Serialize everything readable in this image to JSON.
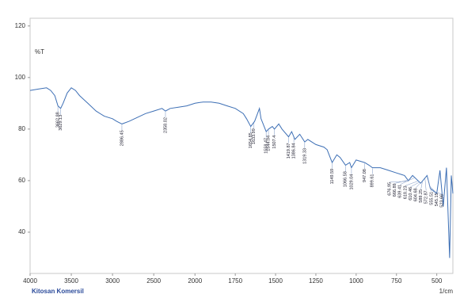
{
  "chart_data": {
    "type": "line",
    "title": "Kitosan Komersil",
    "y_label": "%T",
    "x_label": "1/cm",
    "xlim": [
      4000,
      400
    ],
    "x_scale_change": 2000,
    "ylim": [
      24,
      123
    ],
    "xticks": [
      4000,
      3500,
      3000,
      2500,
      2000,
      1750,
      1500,
      1250,
      1000,
      750,
      500
    ],
    "yticks": [
      40,
      60,
      80,
      100,
      120
    ],
    "series": [
      {
        "name": "Kitosan Komersil",
        "color": "#3d6fb5",
        "x": [
          4000,
          3900,
          3800,
          3750,
          3700,
          3662,
          3629,
          3600,
          3550,
          3500,
          3450,
          3400,
          3300,
          3200,
          3100,
          3000,
          2950,
          2886,
          2800,
          2700,
          2600,
          2500,
          2400,
          2358,
          2300,
          2200,
          2100,
          2000,
          1950,
          1900,
          1850,
          1800,
          1750,
          1700,
          1680,
          1654,
          1630,
          1600,
          1590,
          1558,
          1544,
          1520,
          1507,
          1480,
          1460,
          1419,
          1400,
          1380,
          1350,
          1319,
          1300,
          1250,
          1200,
          1180,
          1149,
          1120,
          1100,
          1066,
          1040,
          1029,
          1000,
          947,
          920,
          899,
          850,
          800,
          750,
          700,
          676,
          650,
          600,
          560,
          540,
          500,
          480,
          460,
          440,
          420,
          410,
          400
        ],
        "values": [
          95,
          95.5,
          96,
          95,
          93,
          89,
          88,
          90,
          94,
          96,
          95,
          93,
          90,
          87,
          85,
          84,
          83,
          82,
          83,
          84.5,
          86,
          87,
          88,
          87,
          88,
          88.5,
          89,
          90,
          90.5,
          90.5,
          90,
          89,
          88,
          86,
          84,
          81,
          83,
          88,
          84,
          79,
          80,
          81,
          80,
          82,
          80,
          77,
          79,
          76,
          78,
          75,
          76,
          74,
          73,
          72,
          67,
          70,
          69,
          66,
          67,
          65,
          68,
          67,
          66,
          65,
          65,
          64,
          63,
          62,
          60,
          62,
          59,
          62,
          57,
          55,
          64,
          50,
          65,
          30,
          62,
          55
        ]
      }
    ],
    "peaks": [
      3662.88,
      3629.13,
      2886.45,
      2358.02,
      1654.85,
      1633.99,
      1558.47,
      1544.04,
      1507.4,
      1419.87,
      1386.84,
      1319.33,
      1149.59,
      1066.58,
      1029.04,
      947.08,
      899.61,
      676.95,
      666.89,
      639.41,
      618.23,
      610.46,
      604.68,
      589.25,
      572.87,
      555.51,
      545.15,
      523.66
    ]
  }
}
